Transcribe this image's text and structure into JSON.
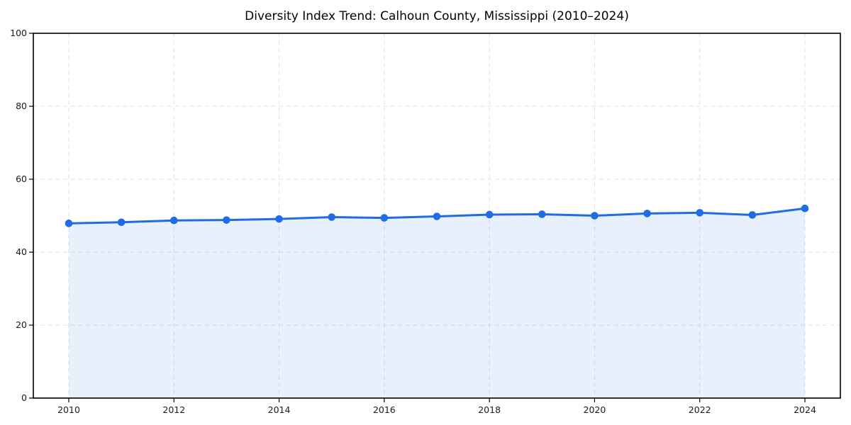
{
  "chart_data": {
    "type": "line",
    "title": "Diversity Index Trend: Calhoun County, Mississippi (2010–2024)",
    "xlabel": "",
    "ylabel": "",
    "x": [
      2010,
      2011,
      2012,
      2013,
      2014,
      2015,
      2016,
      2017,
      2018,
      2019,
      2020,
      2021,
      2022,
      2023,
      2024
    ],
    "series": [
      {
        "name": "Diversity Index",
        "values": [
          47.9,
          48.2,
          48.7,
          48.8,
          49.1,
          49.6,
          49.4,
          49.8,
          50.3,
          50.4,
          50.0,
          50.6,
          50.8,
          50.2,
          52.0
        ]
      }
    ],
    "xticks": [
      2010,
      2012,
      2014,
      2016,
      2018,
      2020,
      2022,
      2024
    ],
    "yticks": [
      0,
      20,
      40,
      60,
      80,
      100
    ],
    "ylim": [
      0,
      100
    ],
    "grid": {
      "style": "dashed",
      "color": "#e2e2e2"
    },
    "legend_position": "none",
    "marker": "circle",
    "area_fill": true,
    "colors": {
      "line": "#1f6ce5",
      "fill": "#1f6ce5",
      "fill_opacity": 0.1,
      "axis": "#000000",
      "tick_label": "#1a1a1a",
      "title": "#000000"
    }
  }
}
